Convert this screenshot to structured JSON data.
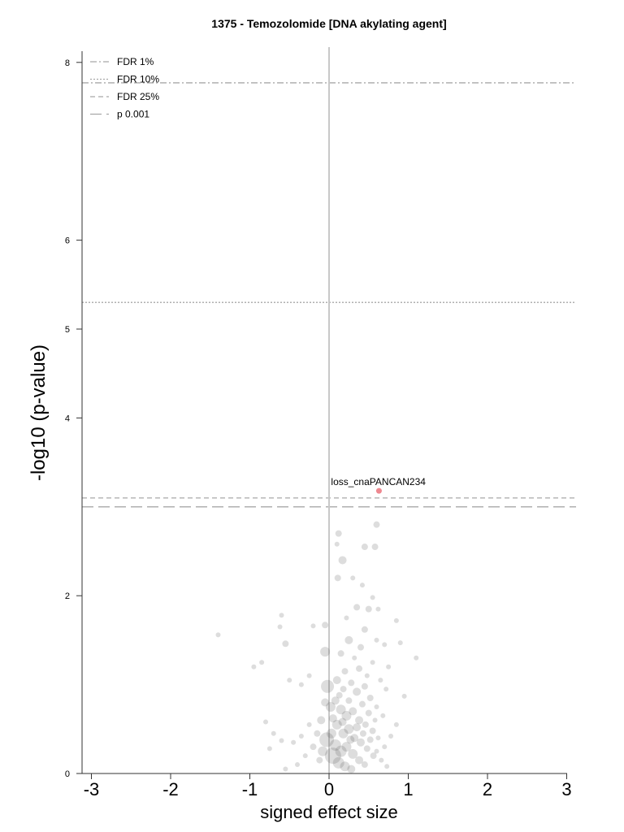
{
  "chart_data": {
    "type": "scatter",
    "title": "1375 - Temozolomide [DNA akylating agent]",
    "xlabel": "signed effect size",
    "ylabel": "-log10 (p-value)",
    "xlim": [
      -3.1,
      3.1
    ],
    "ylim": [
      0,
      8.2
    ],
    "xticks": [
      -3,
      -2,
      -1,
      0,
      1,
      2,
      3
    ],
    "yticks": [
      0,
      2,
      4,
      5,
      6,
      8
    ],
    "legend": {
      "placement": "top-left",
      "entries": [
        {
          "label": "FDR 1%",
          "style": "dashdot",
          "y": 7.77
        },
        {
          "label": "FDR 10%",
          "style": "dotted",
          "y": 5.3
        },
        {
          "label": "FDR 25%",
          "style": "dashed",
          "y": 3.1
        },
        {
          "label": "p 0.001",
          "style": "longdash",
          "y": 3.0
        }
      ]
    },
    "colors": {
      "points": "#555555",
      "highlight": "#ee8890",
      "threshold_lines": "#a8a8a8",
      "zero_line": "#c8c8c8"
    },
    "highlight": {
      "label": "loss_cnaPANCAN234",
      "x": 0.63,
      "y": 3.18
    },
    "points": [
      {
        "x": -1.4,
        "y": 1.56,
        "s": 3
      },
      {
        "x": -0.6,
        "y": 1.78,
        "s": 3
      },
      {
        "x": -0.62,
        "y": 1.65,
        "s": 3
      },
      {
        "x": -0.55,
        "y": 1.46,
        "s": 4
      },
      {
        "x": -0.95,
        "y": 1.2,
        "s": 3
      },
      {
        "x": -0.85,
        "y": 1.25,
        "s": 3
      },
      {
        "x": -0.5,
        "y": 1.05,
        "s": 3
      },
      {
        "x": -0.35,
        "y": 1.0,
        "s": 3
      },
      {
        "x": -0.8,
        "y": 0.58,
        "s": 3
      },
      {
        "x": -0.7,
        "y": 0.45,
        "s": 3
      },
      {
        "x": -0.6,
        "y": 0.37,
        "s": 3
      },
      {
        "x": -0.75,
        "y": 0.28,
        "s": 3
      },
      {
        "x": -0.2,
        "y": 1.66,
        "s": 3
      },
      {
        "x": -0.05,
        "y": 1.67,
        "s": 4
      },
      {
        "x": -0.25,
        "y": 1.1,
        "s": 3
      },
      {
        "x": -0.05,
        "y": 1.37,
        "s": 6
      },
      {
        "x": -0.02,
        "y": 0.98,
        "s": 8
      },
      {
        "x": 0.02,
        "y": 0.75,
        "s": 6
      },
      {
        "x": -0.03,
        "y": 0.38,
        "s": 9
      },
      {
        "x": 0.05,
        "y": 0.2,
        "s": 10
      },
      {
        "x": -0.1,
        "y": 0.6,
        "s": 5
      },
      {
        "x": -0.15,
        "y": 0.45,
        "s": 4
      },
      {
        "x": -0.2,
        "y": 0.3,
        "s": 4
      },
      {
        "x": -0.25,
        "y": 0.55,
        "s": 3
      },
      {
        "x": -0.3,
        "y": 0.2,
        "s": 3
      },
      {
        "x": -0.4,
        "y": 0.1,
        "s": 3
      },
      {
        "x": -0.45,
        "y": 0.35,
        "s": 3
      },
      {
        "x": -0.55,
        "y": 0.05,
        "s": 3
      },
      {
        "x": -0.35,
        "y": 0.42,
        "s": 3
      },
      {
        "x": -0.12,
        "y": 0.15,
        "s": 4
      },
      {
        "x": 0.12,
        "y": 2.7,
        "s": 4
      },
      {
        "x": 0.1,
        "y": 2.58,
        "s": 3
      },
      {
        "x": 0.17,
        "y": 2.4,
        "s": 5
      },
      {
        "x": 0.11,
        "y": 2.2,
        "s": 4
      },
      {
        "x": 0.45,
        "y": 2.55,
        "s": 4
      },
      {
        "x": 0.6,
        "y": 2.8,
        "s": 4
      },
      {
        "x": 0.58,
        "y": 2.55,
        "s": 4
      },
      {
        "x": 0.3,
        "y": 2.2,
        "s": 3
      },
      {
        "x": 0.42,
        "y": 2.12,
        "s": 3
      },
      {
        "x": 0.55,
        "y": 1.98,
        "s": 3
      },
      {
        "x": 0.35,
        "y": 1.87,
        "s": 4
      },
      {
        "x": 0.5,
        "y": 1.85,
        "s": 4
      },
      {
        "x": 0.62,
        "y": 1.85,
        "s": 3
      },
      {
        "x": 0.45,
        "y": 1.62,
        "s": 4
      },
      {
        "x": 0.22,
        "y": 1.75,
        "s": 3
      },
      {
        "x": 0.85,
        "y": 1.72,
        "s": 3
      },
      {
        "x": 0.25,
        "y": 1.5,
        "s": 5
      },
      {
        "x": 0.4,
        "y": 1.42,
        "s": 4
      },
      {
        "x": 0.6,
        "y": 1.5,
        "s": 3
      },
      {
        "x": 0.7,
        "y": 1.45,
        "s": 3
      },
      {
        "x": 0.9,
        "y": 1.47,
        "s": 3
      },
      {
        "x": 1.1,
        "y": 1.3,
        "s": 3
      },
      {
        "x": 0.15,
        "y": 1.35,
        "s": 4
      },
      {
        "x": 0.32,
        "y": 1.3,
        "s": 3
      },
      {
        "x": 0.55,
        "y": 1.25,
        "s": 3
      },
      {
        "x": 0.75,
        "y": 1.2,
        "s": 3
      },
      {
        "x": 0.95,
        "y": 0.87,
        "s": 3
      },
      {
        "x": 0.1,
        "y": 1.05,
        "s": 5
      },
      {
        "x": 0.18,
        "y": 0.95,
        "s": 4
      },
      {
        "x": 0.28,
        "y": 1.02,
        "s": 4
      },
      {
        "x": 0.35,
        "y": 0.92,
        "s": 5
      },
      {
        "x": 0.45,
        "y": 0.98,
        "s": 4
      },
      {
        "x": 0.52,
        "y": 0.85,
        "s": 4
      },
      {
        "x": 0.6,
        "y": 0.75,
        "s": 3
      },
      {
        "x": 0.68,
        "y": 0.65,
        "s": 3
      },
      {
        "x": 0.08,
        "y": 0.82,
        "s": 5
      },
      {
        "x": 0.15,
        "y": 0.72,
        "s": 6
      },
      {
        "x": 0.22,
        "y": 0.65,
        "s": 6
      },
      {
        "x": 0.3,
        "y": 0.7,
        "s": 5
      },
      {
        "x": 0.38,
        "y": 0.6,
        "s": 5
      },
      {
        "x": 0.46,
        "y": 0.55,
        "s": 4
      },
      {
        "x": 0.55,
        "y": 0.48,
        "s": 4
      },
      {
        "x": 0.62,
        "y": 0.4,
        "s": 3
      },
      {
        "x": 0.7,
        "y": 0.3,
        "s": 3
      },
      {
        "x": 0.1,
        "y": 0.55,
        "s": 6
      },
      {
        "x": 0.18,
        "y": 0.45,
        "s": 6
      },
      {
        "x": 0.25,
        "y": 0.5,
        "s": 6
      },
      {
        "x": 0.32,
        "y": 0.4,
        "s": 5
      },
      {
        "x": 0.4,
        "y": 0.35,
        "s": 5
      },
      {
        "x": 0.48,
        "y": 0.28,
        "s": 4
      },
      {
        "x": 0.56,
        "y": 0.2,
        "s": 4
      },
      {
        "x": 0.08,
        "y": 0.32,
        "s": 7
      },
      {
        "x": 0.15,
        "y": 0.25,
        "s": 7
      },
      {
        "x": 0.22,
        "y": 0.3,
        "s": 6
      },
      {
        "x": 0.3,
        "y": 0.22,
        "s": 6
      },
      {
        "x": 0.38,
        "y": 0.15,
        "s": 5
      },
      {
        "x": 0.45,
        "y": 0.1,
        "s": 4
      },
      {
        "x": 0.12,
        "y": 0.12,
        "s": 7
      },
      {
        "x": 0.2,
        "y": 0.08,
        "s": 6
      },
      {
        "x": 0.28,
        "y": 0.05,
        "s": 5
      },
      {
        "x": 0.05,
        "y": 0.62,
        "s": 5
      },
      {
        "x": 0.13,
        "y": 0.88,
        "s": 4
      },
      {
        "x": 0.25,
        "y": 0.82,
        "s": 4
      },
      {
        "x": 0.42,
        "y": 0.78,
        "s": 4
      },
      {
        "x": 0.5,
        "y": 0.68,
        "s": 4
      },
      {
        "x": 0.58,
        "y": 0.6,
        "s": 3
      },
      {
        "x": 0.65,
        "y": 1.05,
        "s": 3
      },
      {
        "x": 0.72,
        "y": 0.95,
        "s": 3
      },
      {
        "x": 0.78,
        "y": 0.42,
        "s": 3
      },
      {
        "x": 0.85,
        "y": 0.55,
        "s": 3
      },
      {
        "x": 0.2,
        "y": 1.15,
        "s": 4
      },
      {
        "x": 0.38,
        "y": 1.18,
        "s": 4
      },
      {
        "x": 0.48,
        "y": 1.1,
        "s": 3
      },
      {
        "x": 0.03,
        "y": 0.45,
        "s": 6
      },
      {
        "x": -0.05,
        "y": 0.8,
        "s": 5
      },
      {
        "x": -0.08,
        "y": 0.25,
        "s": 6
      },
      {
        "x": 0.35,
        "y": 0.52,
        "s": 5
      },
      {
        "x": 0.27,
        "y": 0.38,
        "s": 5
      },
      {
        "x": 0.17,
        "y": 0.58,
        "s": 5
      },
      {
        "x": 0.43,
        "y": 0.45,
        "s": 4
      },
      {
        "x": 0.52,
        "y": 0.38,
        "s": 4
      },
      {
        "x": 0.6,
        "y": 0.25,
        "s": 3
      },
      {
        "x": 0.66,
        "y": 0.15,
        "s": 3
      },
      {
        "x": 0.73,
        "y": 0.08,
        "s": 3
      }
    ]
  }
}
